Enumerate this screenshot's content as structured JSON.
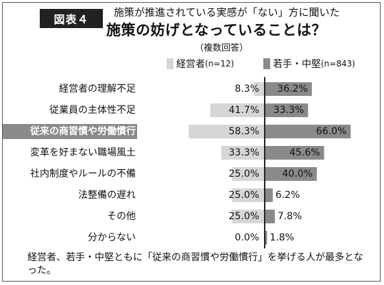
{
  "badge": "図表４",
  "title_line1": "施策が推進されている実感が「ない」方に聞いた",
  "title_line2": "施策の妨げとなっていることは？",
  "subnote": "（複数回答）",
  "footer": "経営者、若手・中堅ともに「従来の商習慣や労働慣行」を挙げる人が最多となった。",
  "colors": {
    "left_bar": "#d6d6d6",
    "right_bar": "#8a8a8a",
    "highlight_bg": "#8a8a8a",
    "highlight_text": "#ffffff",
    "axis": "#222222"
  },
  "chart_data": {
    "type": "bar",
    "orientation": "horizontal-butterfly",
    "categories": [
      "経営者の理解不足",
      "従業員の主体性不足",
      "従来の商習慣や労働慣行",
      "変革を好まない職場風土",
      "社内制度やルールの不備",
      "法整備の遅れ",
      "その他",
      "分からない"
    ],
    "highlighted_category": "従来の商習慣や労働慣行",
    "series": [
      {
        "name": "経営者",
        "n_label": "(n=12)",
        "values": [
          8.3,
          41.7,
          58.3,
          33.3,
          25.0,
          25.0,
          25.0,
          0.0
        ],
        "labels": [
          "8.3%",
          "41.7%",
          "58.3%",
          "33.3%",
          "25.0%",
          "25.0%",
          "25.0%",
          "0.0%"
        ]
      },
      {
        "name": "若手・中堅",
        "n_label": "(n=843)",
        "values": [
          36.2,
          33.3,
          66.0,
          45.6,
          40.0,
          6.2,
          7.8,
          1.8
        ],
        "labels": [
          "36.2%",
          "33.3%",
          "66.0%",
          "45.6%",
          "40.0%",
          "6.2%",
          "7.8%",
          "1.8%"
        ]
      }
    ],
    "xlim": [
      0,
      70
    ]
  }
}
